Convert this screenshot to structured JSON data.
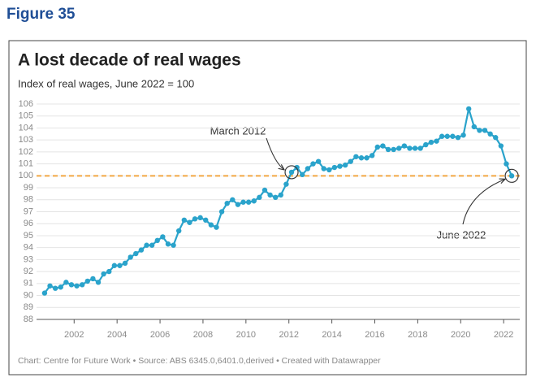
{
  "figure": "Figure 35",
  "chart_data": {
    "type": "line",
    "title": "A lost decade of real wages",
    "subtitle": "Index of real wages, June 2022 = 100",
    "source": "Chart: Centre for Future Work • Source: ABS 6345.0,6401.0,derived • Created with Datawrapper",
    "x": [
      2000.625,
      2000.875,
      2001.125,
      2001.375,
      2001.625,
      2001.875,
      2002.125,
      2002.375,
      2002.625,
      2002.875,
      2003.125,
      2003.375,
      2003.625,
      2003.875,
      2004.125,
      2004.375,
      2004.625,
      2004.875,
      2005.125,
      2005.375,
      2005.625,
      2005.875,
      2006.125,
      2006.375,
      2006.625,
      2006.875,
      2007.125,
      2007.375,
      2007.625,
      2007.875,
      2008.125,
      2008.375,
      2008.625,
      2008.875,
      2009.125,
      2009.375,
      2009.625,
      2009.875,
      2010.125,
      2010.375,
      2010.625,
      2010.875,
      2011.125,
      2011.375,
      2011.625,
      2011.875,
      2012.125,
      2012.375,
      2012.625,
      2012.875,
      2013.125,
      2013.375,
      2013.625,
      2013.875,
      2014.125,
      2014.375,
      2014.625,
      2014.875,
      2015.125,
      2015.375,
      2015.625,
      2015.875,
      2016.125,
      2016.375,
      2016.625,
      2016.875,
      2017.125,
      2017.375,
      2017.625,
      2017.875,
      2018.125,
      2018.375,
      2018.625,
      2018.875,
      2019.125,
      2019.375,
      2019.625,
      2019.875,
      2020.125,
      2020.375,
      2020.625,
      2020.875,
      2021.125,
      2021.375,
      2021.625,
      2021.875,
      2022.125,
      2022.375
    ],
    "values": [
      90.2,
      90.8,
      90.6,
      90.7,
      91.1,
      90.9,
      90.8,
      90.9,
      91.2,
      91.4,
      91.1,
      91.8,
      92.0,
      92.5,
      92.5,
      92.7,
      93.2,
      93.5,
      93.8,
      94.2,
      94.2,
      94.6,
      94.9,
      94.3,
      94.2,
      95.4,
      96.3,
      96.1,
      96.4,
      96.5,
      96.3,
      95.9,
      95.7,
      97.0,
      97.7,
      98.0,
      97.6,
      97.8,
      97.8,
      97.9,
      98.2,
      98.8,
      98.4,
      98.2,
      98.4,
      99.3,
      100.3,
      100.7,
      100.1,
      100.6,
      101.0,
      101.2,
      100.6,
      100.5,
      100.7,
      100.8,
      100.9,
      101.2,
      101.6,
      101.5,
      101.5,
      101.7,
      102.4,
      102.5,
      102.2,
      102.2,
      102.3,
      102.5,
      102.3,
      102.3,
      102.3,
      102.6,
      102.8,
      102.9,
      103.3,
      103.3,
      103.3,
      103.2,
      103.4,
      105.6,
      104.1,
      103.8,
      103.8,
      103.5,
      103.2,
      102.5,
      101.0,
      100.0
    ],
    "color": "#2aa3cb",
    "xlim": [
      2000.25,
      2022.75
    ],
    "xticks": [
      2002,
      2004,
      2006,
      2008,
      2010,
      2012,
      2014,
      2016,
      2018,
      2020,
      2022
    ],
    "ylim": [
      88,
      106
    ],
    "yticks": [
      88,
      89,
      90,
      91,
      92,
      93,
      94,
      95,
      96,
      97,
      98,
      99,
      100,
      101,
      102,
      103,
      104,
      105,
      106
    ],
    "grid": true,
    "reference_line": {
      "value": 100,
      "color": "#f2a744"
    },
    "annotations": [
      "March 2012",
      "June 2022"
    ]
  }
}
